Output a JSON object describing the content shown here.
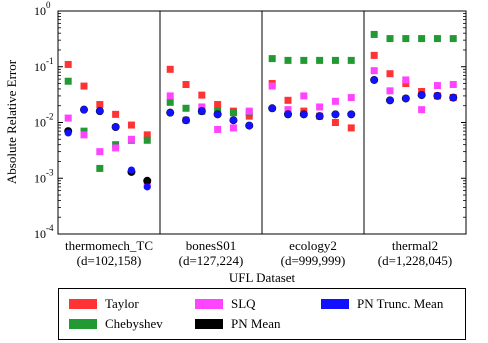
{
  "chart_data": {
    "type": "scatter",
    "y_scale": "log",
    "ylim": [
      0.0001,
      1
    ],
    "ylabel": "Absolute Relative Error",
    "xlabel": "UFL Dataset",
    "y_ticks": [
      {
        "value": 0.0001,
        "label": "10",
        "exp": "-4"
      },
      {
        "value": 0.001,
        "label": "10",
        "exp": "-3"
      },
      {
        "value": 0.01,
        "label": "10",
        "exp": "-2"
      },
      {
        "value": 0.1,
        "label": "10",
        "exp": "-1"
      },
      {
        "value": 1,
        "label": "10",
        "exp": "0"
      }
    ],
    "groups": [
      {
        "name": "thermomech_TC",
        "detail": "(d=102,158)"
      },
      {
        "name": "bonesS01",
        "detail": "(d=127,224)"
      },
      {
        "name": "ecology2",
        "detail": "(d=999,999)"
      },
      {
        "name": "thermal2",
        "detail": "(d=1,228,045)"
      }
    ],
    "series": [
      {
        "name": "Taylor",
        "color": "#ff3333",
        "values": [
          [
            0.11,
            0.045,
            0.021,
            0.014,
            0.009,
            0.006
          ],
          [
            0.09,
            0.048,
            0.031,
            0.021,
            0.016,
            0.013
          ],
          [
            0.05,
            0.025,
            0.016,
            0.013,
            0.01,
            0.008
          ],
          [
            0.16,
            0.075,
            0.05,
            0.036,
            0.03,
            0.028
          ]
        ]
      },
      {
        "name": "Chebyshev",
        "color": "#229933",
        "values": [
          [
            0.055,
            0.007,
            0.0015,
            0.004,
            0.0048,
            0.0048
          ],
          [
            0.023,
            0.018,
            0.016,
            0.016,
            0.015,
            0.015
          ],
          [
            0.14,
            0.13,
            0.13,
            0.13,
            0.13,
            0.13
          ],
          [
            0.38,
            0.32,
            0.32,
            0.32,
            0.32,
            0.32
          ]
        ]
      },
      {
        "name": "SLQ",
        "color": "#ff44ff",
        "values": [
          [
            0.012,
            0.006,
            0.003,
            0.0035,
            0.005,
            0.0008
          ],
          [
            0.03,
            0.011,
            0.019,
            0.0075,
            0.008,
            0.016
          ],
          [
            0.045,
            0.017,
            0.03,
            0.019,
            0.024,
            0.028
          ],
          [
            0.085,
            0.037,
            0.058,
            0.017,
            0.046,
            0.048
          ]
        ]
      },
      {
        "name": "PN Mean",
        "color": "#000000",
        "values": [
          [
            0.007,
            0.017,
            0.016,
            0.0083,
            0.0013,
            0.0009
          ],
          [
            0.015,
            0.011,
            0.016,
            0.014,
            0.011,
            0.0088
          ],
          [
            0.018,
            0.014,
            0.014,
            0.013,
            0.014,
            0.014
          ],
          [
            0.058,
            0.025,
            0.027,
            0.031,
            0.03,
            0.028
          ]
        ]
      },
      {
        "name": "PN Trunc. Mean",
        "color": "#1111ff",
        "values": [
          [
            0.0065,
            0.017,
            0.016,
            0.0083,
            0.0014,
            0.0007
          ],
          [
            0.015,
            0.011,
            0.016,
            0.014,
            0.011,
            0.0088
          ],
          [
            0.018,
            0.014,
            0.014,
            0.013,
            0.014,
            0.014
          ],
          [
            0.058,
            0.025,
            0.027,
            0.031,
            0.03,
            0.028
          ]
        ]
      }
    ],
    "legend": {
      "placement": "bottom",
      "items": [
        {
          "label": "Taylor",
          "color": "#ff3333"
        },
        {
          "label": "SLQ",
          "color": "#ff44ff"
        },
        {
          "label": "PN Trunc. Mean",
          "color": "#1111ff"
        },
        {
          "label": "Chebyshev",
          "color": "#229933"
        },
        {
          "label": "PN Mean",
          "color": "#000000"
        }
      ]
    }
  }
}
